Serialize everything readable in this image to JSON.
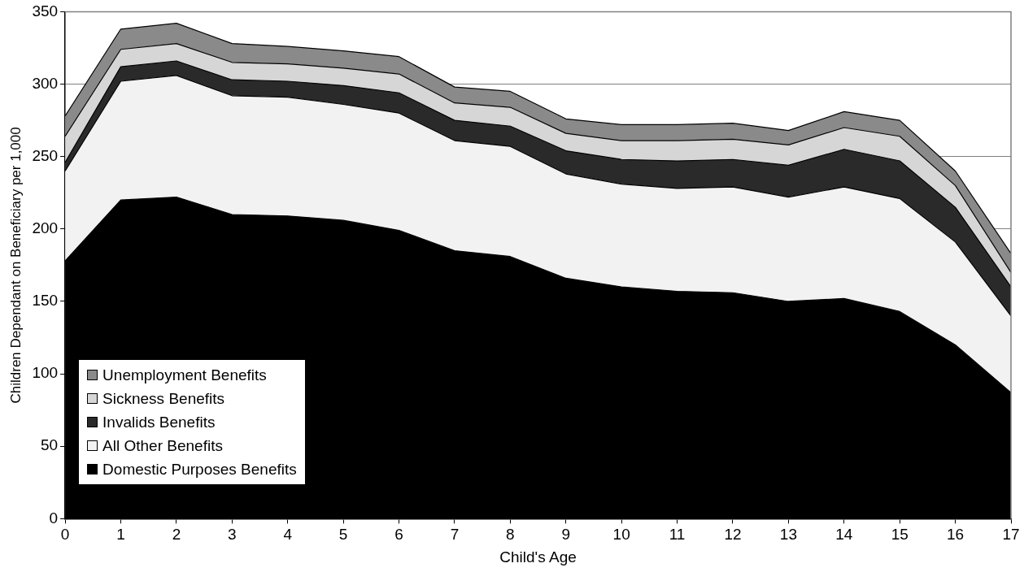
{
  "chart_data": {
    "type": "area",
    "stacked": true,
    "xlabel": "Child's Age",
    "ylabel": "Children Dependant on Beneficiary per 1,000",
    "x": [
      0,
      1,
      2,
      3,
      4,
      5,
      6,
      7,
      8,
      9,
      10,
      11,
      12,
      13,
      14,
      15,
      16,
      17
    ],
    "xlim": [
      0,
      17
    ],
    "xticks": [
      0,
      1,
      2,
      3,
      4,
      5,
      6,
      7,
      8,
      9,
      10,
      11,
      12,
      13,
      14,
      15,
      16,
      17
    ],
    "ylim": [
      0,
      350
    ],
    "yticks": [
      0,
      50,
      100,
      150,
      200,
      250,
      300,
      350
    ],
    "grid": "y",
    "legend": "bottom left",
    "series": [
      {
        "name": "Domestic Purposes Benefits",
        "color": "#000000",
        "values": [
          178,
          220,
          222,
          210,
          209,
          206,
          199,
          185,
          181,
          166,
          160,
          157,
          156,
          150,
          152,
          143,
          120,
          87
        ]
      },
      {
        "name": "All Other Benefits",
        "color": "#f2f2f2",
        "values": [
          62,
          82,
          84,
          82,
          82,
          80,
          81,
          76,
          76,
          72,
          71,
          71,
          73,
          72,
          77,
          78,
          71,
          53
        ]
      },
      {
        "name": "Invalids Benefits",
        "color": "#2a2a2a",
        "values": [
          6,
          10,
          10,
          11,
          11,
          13,
          14,
          14,
          14,
          16,
          17,
          19,
          19,
          22,
          26,
          26,
          24,
          20
        ]
      },
      {
        "name": "Sickness Benefits",
        "color": "#d6d6d6",
        "values": [
          18,
          12,
          12,
          12,
          12,
          12,
          13,
          12,
          13,
          12,
          13,
          14,
          14,
          14,
          15,
          17,
          15,
          10
        ]
      },
      {
        "name": "Unemployment Benefits",
        "color": "#8a8a8a",
        "values": [
          14,
          14,
          14,
          13,
          12,
          12,
          12,
          11,
          11,
          10,
          11,
          11,
          11,
          10,
          11,
          11,
          10,
          13
        ]
      }
    ]
  }
}
